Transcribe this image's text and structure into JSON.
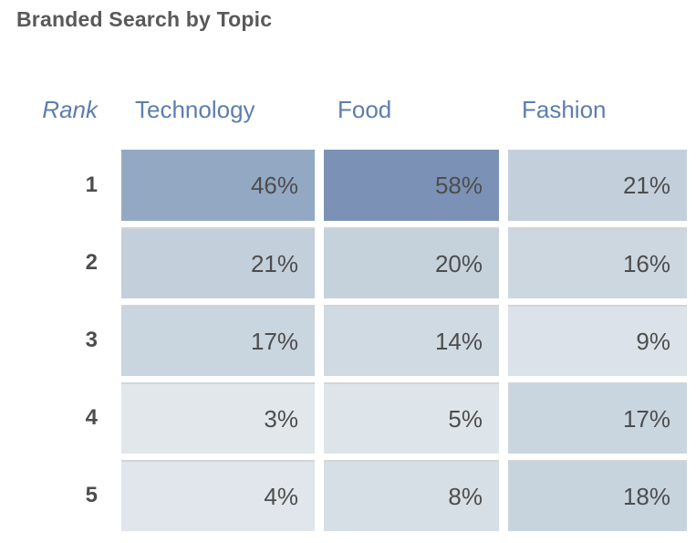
{
  "title": "Branded Search by Topic",
  "colors": {
    "title_text": "#595959",
    "header_text": "#5d7eae",
    "value_text": "#4d4d4d",
    "cell_strip": "#d2d4d7",
    "background": "#ffffff"
  },
  "chart_data": {
    "type": "heatmap",
    "title": "Branded Search by Topic",
    "unit": "%",
    "columns": [
      "Rank",
      "Technology",
      "Food",
      "Fashion"
    ],
    "ranks": [
      1,
      2,
      3,
      4,
      5
    ],
    "series": [
      {
        "name": "Technology",
        "values": [
          46,
          21,
          17,
          3,
          4
        ]
      },
      {
        "name": "Food",
        "values": [
          58,
          20,
          14,
          5,
          8
        ]
      },
      {
        "name": "Fashion",
        "values": [
          21,
          16,
          9,
          17,
          18
        ]
      }
    ],
    "color_scale": {
      "low": "#e2e8ed",
      "high": "#7b92b6"
    },
    "legend_position": "none",
    "grid": false
  },
  "table": {
    "header": {
      "rank": "Rank",
      "technology": "Technology",
      "food": "Food",
      "fashion": "Fashion"
    },
    "rows": [
      {
        "rank": "1",
        "cells": [
          {
            "label": "46%",
            "color": "#93a9c3"
          },
          {
            "label": "58%",
            "color": "#7b92b6"
          },
          {
            "label": "21%",
            "color": "#c3d0db"
          }
        ]
      },
      {
        "rank": "2",
        "cells": [
          {
            "label": "21%",
            "color": "#c3d0db"
          },
          {
            "label": "20%",
            "color": "#c5d2dc"
          },
          {
            "label": "16%",
            "color": "#ccd7e0"
          }
        ]
      },
      {
        "rank": "3",
        "cells": [
          {
            "label": "17%",
            "color": "#c9d5df"
          },
          {
            "label": "14%",
            "color": "#cfdae2"
          },
          {
            "label": "9%",
            "color": "#dbe2e9"
          }
        ]
      },
      {
        "rank": "4",
        "cells": [
          {
            "label": "3%",
            "color": "#e1e7eb"
          },
          {
            "label": "5%",
            "color": "#dee5ea"
          },
          {
            "label": "17%",
            "color": "#c9d5df"
          }
        ]
      },
      {
        "rank": "5",
        "cells": [
          {
            "label": "4%",
            "color": "#e0e6eb"
          },
          {
            "label": "8%",
            "color": "#d7dfe6"
          },
          {
            "label": "18%",
            "color": "#c7d4de"
          }
        ]
      }
    ]
  }
}
